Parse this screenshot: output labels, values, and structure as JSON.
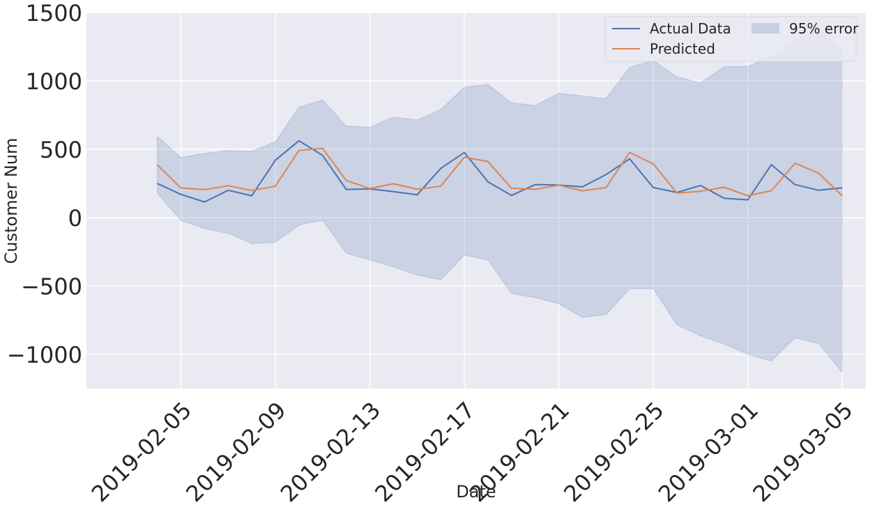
{
  "chart_data": {
    "type": "line",
    "title": "",
    "xlabel": "Date",
    "ylabel": "Customer Num",
    "ylim": [
      -1250,
      1500
    ],
    "xlim": [
      "2019-02-01",
      "2019-03-06"
    ],
    "y_ticks": [
      -1000,
      -500,
      0,
      500,
      1000,
      1500
    ],
    "y_tick_labels": [
      "−1000",
      "−500",
      "0",
      "500",
      "1000",
      "1500"
    ],
    "x_ticks": [
      "2019-02-05",
      "2019-02-09",
      "2019-02-13",
      "2019-02-17",
      "2019-02-21",
      "2019-02-25",
      "2019-03-01",
      "2019-03-05"
    ],
    "grid": true,
    "legend": {
      "placement": "top-right",
      "columns": 2
    },
    "x": [
      "2019-02-04",
      "2019-02-05",
      "2019-02-06",
      "2019-02-07",
      "2019-02-08",
      "2019-02-09",
      "2019-02-10",
      "2019-02-11",
      "2019-02-12",
      "2019-02-13",
      "2019-02-14",
      "2019-02-15",
      "2019-02-16",
      "2019-02-17",
      "2019-02-18",
      "2019-02-19",
      "2019-02-20",
      "2019-02-21",
      "2019-02-22",
      "2019-02-23",
      "2019-02-24",
      "2019-02-25",
      "2019-02-26",
      "2019-02-27",
      "2019-02-28",
      "2019-03-01",
      "2019-03-02",
      "2019-03-03",
      "2019-03-04",
      "2019-03-05"
    ],
    "series": [
      {
        "name": "Actual Data",
        "color": "#4c72b0",
        "values": [
          250,
          170,
          115,
          200,
          160,
          420,
          562,
          455,
          206,
          210,
          190,
          167,
          360,
          476,
          262,
          162,
          242,
          238,
          225,
          315,
          430,
          220,
          184,
          235,
          142,
          130,
          387,
          242,
          200,
          218
        ]
      },
      {
        "name": "Predicted",
        "color": "#dd8452",
        "values": [
          386,
          217,
          205,
          233,
          198,
          230,
          492,
          506,
          272,
          212,
          248,
          207,
          230,
          442,
          410,
          215,
          207,
          238,
          196,
          220,
          477,
          393,
          180,
          193,
          222,
          160,
          197,
          398,
          325,
          160
        ]
      }
    ],
    "band": {
      "name": "95% error",
      "color": "#4c72b0",
      "lower": [
        180,
        -20,
        -80,
        -115,
        -190,
        -180,
        -55,
        -20,
        -260,
        -310,
        -360,
        -420,
        -455,
        -275,
        -310,
        -555,
        -585,
        -630,
        -730,
        -710,
        -520,
        -520,
        -785,
        -865,
        -925,
        -1000,
        -1050,
        -880,
        -920,
        -1130
      ],
      "upper": [
        595,
        440,
        470,
        490,
        485,
        555,
        808,
        860,
        670,
        660,
        735,
        715,
        790,
        955,
        975,
        840,
        820,
        910,
        890,
        870,
        1100,
        1150,
        1030,
        985,
        1105,
        1105,
        1180,
        1300,
        1400,
        1220
      ]
    }
  }
}
